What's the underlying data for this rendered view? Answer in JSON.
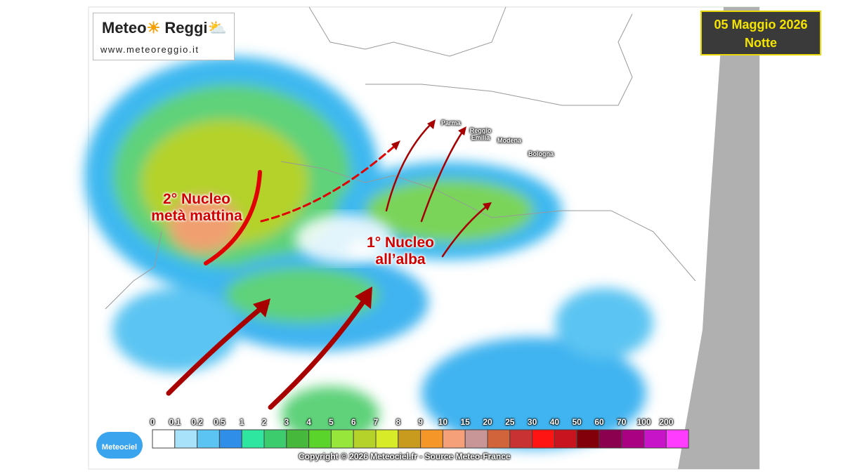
{
  "logo": {
    "brand_first": "Meteo",
    "brand_second": "Reggi",
    "url": "www.meteoreggio.it"
  },
  "date_box": {
    "date": "05 Maggio 2026",
    "period": "Notte"
  },
  "cities": [
    "Parma",
    "Reggio Emilia",
    "Modena",
    "Bologna"
  ],
  "annotations": [
    {
      "lines": [
        "2° Nucleo",
        "metà mattina"
      ]
    },
    {
      "lines": [
        "1° Nucleo",
        "all’alba"
      ]
    }
  ],
  "legend": {
    "labels": [
      "0",
      "0.1",
      "0.2",
      "0.5",
      "1",
      "2",
      "3",
      "4",
      "5",
      "6",
      "7",
      "8",
      "9",
      "10",
      "15",
      "20",
      "25",
      "30",
      "40",
      "50",
      "60",
      "70",
      "100",
      "200"
    ],
    "colors": [
      "#ffffff",
      "#a8e2fa",
      "#5cc4f2",
      "#2f8fe8",
      "#2ee6a0",
      "#3ccc6e",
      "#46b83c",
      "#5ad42a",
      "#96e63c",
      "#b4d22a",
      "#d7eb28",
      "#c89b1e",
      "#f59628",
      "#f5a078",
      "#c89696",
      "#d2643c",
      "#c83232",
      "#ff1414",
      "#c8141e",
      "#82000a",
      "#8c0050",
      "#aa0082",
      "#c814c8",
      "#ff3cff"
    ]
  },
  "copyright": "Copyright © 2026 Meteociel.fr - Source Meteo-France",
  "badge": "Meteociel"
}
